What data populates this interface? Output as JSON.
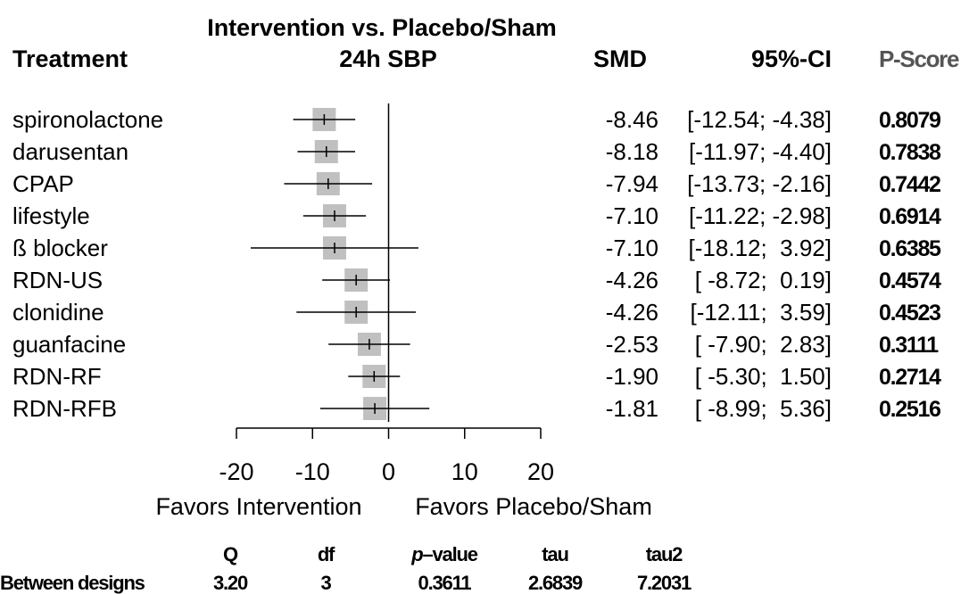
{
  "header": {
    "title": "Intervention vs. Placebo/Sham",
    "subtitle": "24h SBP",
    "col_treatment": "Treatment",
    "col_smd": "SMD",
    "col_ci": "95%-CI",
    "col_pscore": "P-Score"
  },
  "chart_data": {
    "type": "forest",
    "xlim": [
      -20,
      20
    ],
    "x_ticks": [
      "-20",
      "-10",
      "0",
      "10",
      "20"
    ],
    "xlabel_left": "Favors Intervention",
    "xlabel_right": "Favors Placebo/Sham",
    "reference_line": 0,
    "rows": [
      {
        "treatment": "spironolactone",
        "smd": -8.46,
        "lower": -12.54,
        "upper": -4.38,
        "smd_text": "-8.46",
        "ci_text": "[-12.54; -4.38]",
        "pscore": "0.8079",
        "weight": 1.0
      },
      {
        "treatment": "darusentan",
        "smd": -8.18,
        "lower": -11.97,
        "upper": -4.4,
        "smd_text": "-8.18",
        "ci_text": "[-11.97; -4.40]",
        "pscore": "0.7838",
        "weight": 1.0
      },
      {
        "treatment": "CPAP",
        "smd": -7.94,
        "lower": -13.73,
        "upper": -2.16,
        "smd_text": "-7.94",
        "ci_text": "[-13.73; -2.16]",
        "pscore": "0.7442",
        "weight": 1.0
      },
      {
        "treatment": "lifestyle",
        "smd": -7.1,
        "lower": -11.22,
        "upper": -2.98,
        "smd_text": "-7.10",
        "ci_text": "[-11.22; -2.98]",
        "pscore": "0.6914",
        "weight": 1.0
      },
      {
        "treatment": "ß blocker",
        "smd": -7.1,
        "lower": -18.12,
        "upper": 3.92,
        "smd_text": "-7.10",
        "ci_text": "[-18.12;  3.92]",
        "pscore": "0.6385",
        "weight": 1.0
      },
      {
        "treatment": "RDN-US",
        "smd": -4.26,
        "lower": -8.72,
        "upper": 0.19,
        "smd_text": "-4.26",
        "ci_text": "[ -8.72;  0.19]",
        "pscore": "0.4574",
        "weight": 1.0
      },
      {
        "treatment": "clonidine",
        "smd": -4.26,
        "lower": -12.11,
        "upper": 3.59,
        "smd_text": "-4.26",
        "ci_text": "[-12.11;  3.59]",
        "pscore": "0.4523",
        "weight": 1.0
      },
      {
        "treatment": "guanfacine",
        "smd": -2.53,
        "lower": -7.9,
        "upper": 2.83,
        "smd_text": "-2.53",
        "ci_text": "[ -7.90;  2.83]",
        "pscore": "0.3111",
        "weight": 1.0
      },
      {
        "treatment": "RDN-RF",
        "smd": -1.9,
        "lower": -5.3,
        "upper": 1.5,
        "smd_text": "-1.90",
        "ci_text": "[ -5.30;  1.50]",
        "pscore": "0.2714",
        "weight": 1.0
      },
      {
        "treatment": "RDN-RFB",
        "smd": -1.81,
        "lower": -8.99,
        "upper": 5.36,
        "smd_text": "-1.81",
        "ci_text": "[ -8.99;  5.36]",
        "pscore": "0.2516",
        "weight": 1.0
      }
    ],
    "marker_color": "#c0c0c0",
    "heterogeneity": {
      "headers": [
        "Q",
        "df",
        "p–value",
        "tau",
        "tau2"
      ],
      "row_label": "Between designs",
      "values": [
        "3.20",
        "3",
        "0.3611",
        "2.6839",
        "7.2031"
      ]
    }
  }
}
